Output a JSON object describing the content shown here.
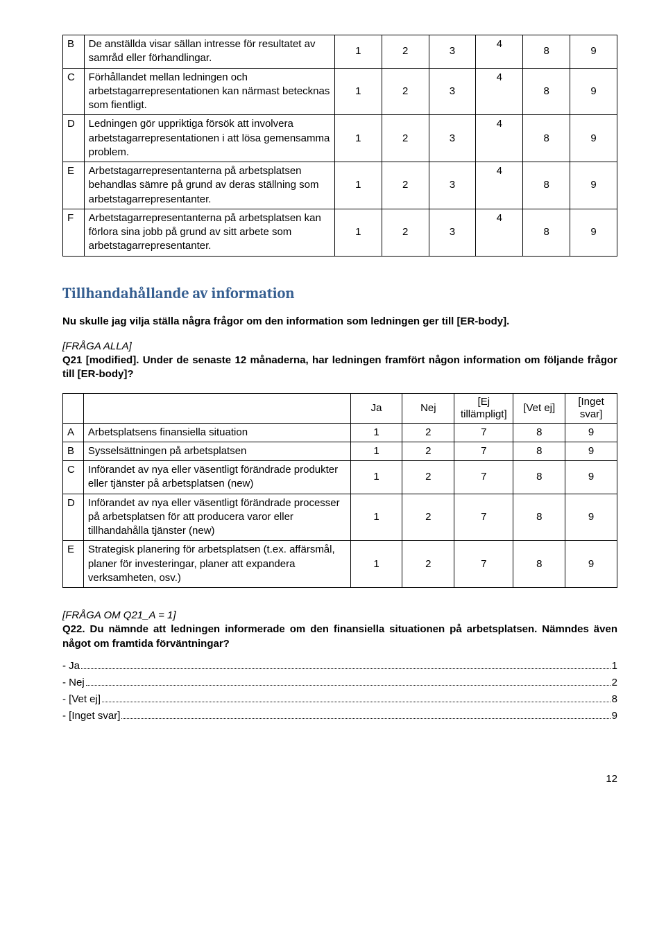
{
  "table1": {
    "rows": [
      {
        "letter": "B",
        "text": "De anställda visar sällan intresse för resultatet av samråd eller förhandlingar.",
        "cells": [
          "1",
          "2",
          "3",
          "4",
          "8",
          "9"
        ]
      },
      {
        "letter": "C",
        "text": "Förhållandet mellan ledningen och arbetstagarrepresentationen kan närmast betecknas som fientligt.",
        "cells": [
          "1",
          "2",
          "3",
          "4",
          "8",
          "9"
        ]
      },
      {
        "letter": "D",
        "text": "Ledningen gör uppriktiga försök att involvera arbetstagarrepresentationen i att lösa gemensamma problem.",
        "cells": [
          "1",
          "2",
          "3",
          "4",
          "8",
          "9"
        ]
      },
      {
        "letter": "E",
        "text": "Arbetstagarrepresentanterna på arbetsplatsen behandlas sämre på grund av deras ställning som arbetstagarrepresentanter.",
        "cells": [
          "1",
          "2",
          "3",
          "4",
          "8",
          "9"
        ]
      },
      {
        "letter": "F",
        "text": "Arbetstagarrepresentanterna på arbetsplatsen kan förlora sina jobb på grund av sitt arbete som arbetstagarrepresentanter.",
        "cells": [
          "1",
          "2",
          "3",
          "4",
          "8",
          "9"
        ]
      }
    ]
  },
  "section_title": "Tillhandahållande av information",
  "intro_text": "Nu skulle jag vilja ställa några frågor om den information som ledningen ger till [ER-body].",
  "fraga_alla": "[FRÅGA ALLA]",
  "q21_prefix": "Q21 [modified]. ",
  "q21_text": "Under de senaste 12 månaderna, har ledningen framfört någon information om följande frågor till [ER-body]?",
  "table2": {
    "headers": [
      "Ja",
      "Nej",
      "[Ej tillämpligt]",
      "[Vet ej]",
      "[Inget svar]"
    ],
    "rows": [
      {
        "letter": "A",
        "text": "Arbetsplatsens finansiella situation",
        "cells": [
          "1",
          "2",
          "7",
          "8",
          "9"
        ]
      },
      {
        "letter": "B",
        "text": "Sysselsättningen på arbetsplatsen",
        "cells": [
          "1",
          "2",
          "7",
          "8",
          "9"
        ]
      },
      {
        "letter": "C",
        "text": "Införandet av nya eller väsentligt förändrade produkter eller tjänster på arbetsplatsen (new)",
        "cells": [
          "1",
          "2",
          "7",
          "8",
          "9"
        ]
      },
      {
        "letter": "D",
        "text": "Införandet av nya eller väsentligt förändrade processer på arbetsplatsen för att producera varor eller tillhandahålla tjänster (new)",
        "cells": [
          "1",
          "2",
          "7",
          "8",
          "9"
        ]
      },
      {
        "letter": "E",
        "text": "Strategisk planering för arbetsplatsen (t.ex. affärsmål, planer för investeringar, planer att expandera verksamheten, osv.)",
        "cells": [
          "1",
          "2",
          "7",
          "8",
          "9"
        ]
      }
    ]
  },
  "q22_cond": "[FRÅGA OM Q21_A = 1]",
  "q22_prefix": "Q22. ",
  "q22_text": "Du nämnde att ledningen informerade om den finansiella situationen på arbetsplatsen. Nämndes även något om framtida förväntningar?",
  "answers": [
    {
      "label": "- Ja",
      "value": "1"
    },
    {
      "label": "- Nej",
      "value": "2"
    },
    {
      "label": "- [Vet ej]",
      "value": "8"
    },
    {
      "label": "- [Inget svar]",
      "value": "9"
    }
  ],
  "page_number": "12"
}
